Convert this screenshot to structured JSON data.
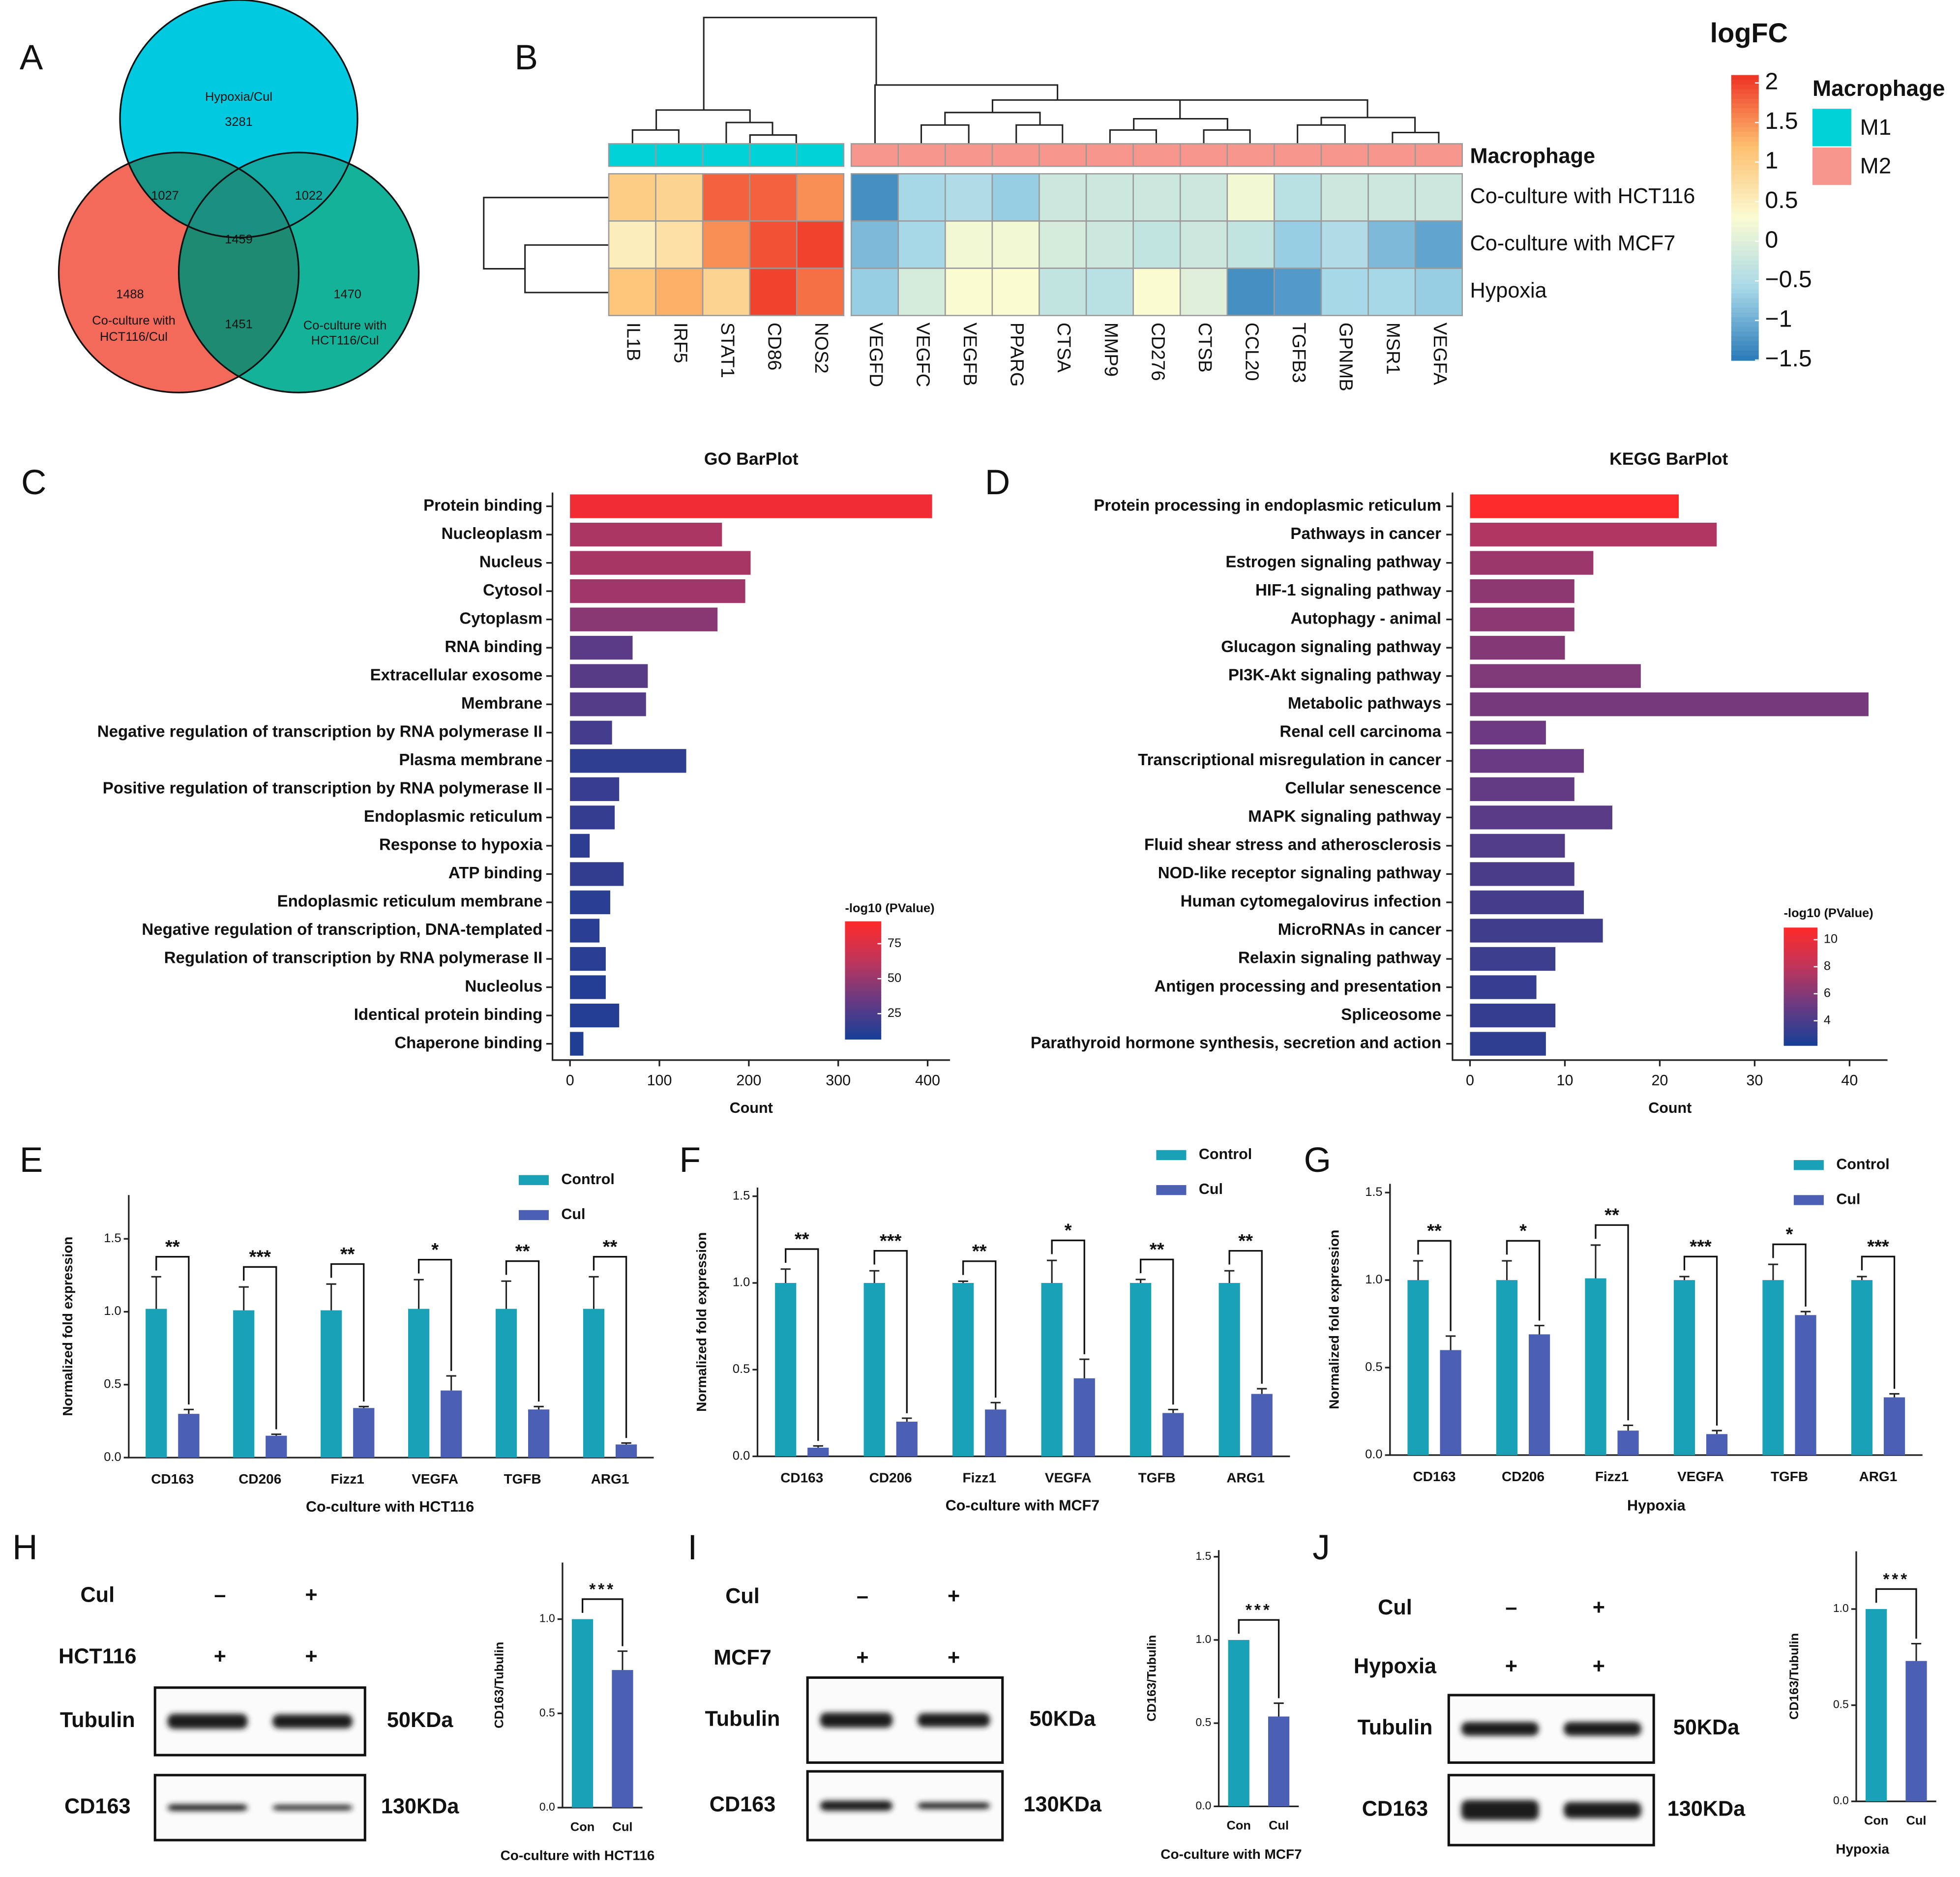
{
  "panel_labels": [
    "A",
    "B",
    "C",
    "D",
    "E",
    "F",
    "G",
    "H",
    "I",
    "J"
  ],
  "venn": {
    "labels": [
      [
        "Hypoxia/Cul"
      ],
      [
        "Co-culture with",
        "HCT116/Cul"
      ],
      [
        "Co-culture with",
        "HCT116/Cul"
      ]
    ],
    "counts": [
      3281,
      1488,
      1470,
      1027,
      1022,
      1451,
      1459
    ],
    "colors": [
      "#00c9e0",
      "#f3695a",
      "#15b29a"
    ]
  },
  "chart_data": [
    {
      "type": "heatmap",
      "rows": [
        "Co-culture with HCT116",
        "Co-culture with MCF7",
        "Hypoxia"
      ],
      "columns": [
        "IL1B",
        "IRF5",
        "STAT1",
        "CD86",
        "NOS2",
        "VEGFD",
        "VEGFC",
        "VEGFB",
        "PPARG",
        "CTSA",
        "MMP9",
        "CD276",
        "CTSB",
        "CCL20",
        "TGFB3",
        "GPNMB",
        "MSR1",
        "VEGFA"
      ],
      "values": [
        [
          1.0,
          0.9,
          1.8,
          1.8,
          1.5,
          -1.3,
          -0.6,
          -0.5,
          -0.7,
          -0.2,
          -0.2,
          -0.2,
          -0.2,
          0.2,
          -0.4,
          -0.2,
          -0.2,
          -0.2
        ],
        [
          0.5,
          0.7,
          1.5,
          1.9,
          2.0,
          -0.9,
          -0.6,
          0.2,
          0.2,
          -0.1,
          -0.2,
          -0.3,
          -0.2,
          -0.3,
          -0.7,
          -0.5,
          -0.9,
          -1.1
        ],
        [
          1.1,
          1.3,
          0.9,
          2.0,
          1.7,
          -0.7,
          -0.1,
          0.3,
          0.3,
          -0.3,
          -0.4,
          0.3,
          0.0,
          -1.3,
          -1.2,
          -0.6,
          -0.6,
          -0.7
        ]
      ],
      "annotation_title": "Macrophage",
      "annotation": [
        "M1",
        "M1",
        "M1",
        "M1",
        "M1",
        "M2",
        "M2",
        "M2",
        "M2",
        "M2",
        "M2",
        "M2",
        "M2",
        "M2",
        "M2",
        "M2",
        "M2",
        "M2"
      ],
      "legend_title": "Macrophage",
      "groups": [
        "M1",
        "M2"
      ],
      "group_colors": [
        "#00d2d8",
        "#f7968c"
      ],
      "colorbar_title": "logFC",
      "clim": [
        -1.5,
        2.1
      ],
      "cticks": [
        2,
        1.5,
        1,
        0.5,
        0,
        {
          "value": -0.5,
          "label": "−0.5"
        },
        {
          "value": -1,
          "label": "−1"
        },
        {
          "value": -1.5,
          "label": "−1.5"
        }
      ],
      "colors": [
        "#2a7ab9",
        "#a6d8e8",
        "#fbfbd2",
        "#fdbf6f",
        "#ee3224"
      ]
    },
    {
      "type": "barh",
      "title": "GO BarPlot",
      "categories": [
        "Protein binding",
        "Nucleoplasm",
        "Nucleus",
        "Cytosol",
        "Cytoplasm",
        "RNA binding",
        "Extracellular exosome",
        "Membrane",
        "Negative regulation of transcription by RNA polymerase II",
        "Plasma membrane",
        "Positive regulation of transcription by RNA polymerase II",
        "Endoplasmic reticulum",
        "Response to hypoxia",
        "ATP binding",
        "Endoplasmic reticulum membrane",
        "Negative regulation of transcription, DNA-templated",
        "Regulation of transcription by RNA polymerase II",
        "Nucleolus",
        "Identical protein binding",
        "Chaperone binding"
      ],
      "values": [
        405,
        170,
        202,
        196,
        165,
        70,
        87,
        85,
        47,
        130,
        55,
        50,
        22,
        60,
        45,
        33,
        40,
        40,
        55,
        15
      ],
      "color_values": [
        85,
        56,
        55,
        53,
        45,
        30,
        29,
        27,
        22,
        15,
        18,
        17,
        14,
        16,
        13,
        12,
        12,
        11,
        11,
        10
      ],
      "xlim": [
        0,
        425
      ],
      "xticks": [
        0,
        100,
        200,
        300,
        400
      ],
      "xlabel": "Count",
      "colorbar_title": "-log10 (PValue)",
      "clim": [
        7,
        91
      ],
      "cticks": [
        25,
        50,
        75
      ],
      "colors": [
        "#183f97",
        "#6a3a82",
        "#c0355a",
        "#ff2a2a"
      ]
    },
    {
      "type": "barh",
      "title": "KEGG BarPlot",
      "categories": [
        "Protein processing in endoplasmic reticulum",
        "Pathways in cancer",
        "Estrogen signaling pathway",
        "HIF-1 signaling pathway",
        "Autophagy - animal",
        "Glucagon signaling pathway",
        "PI3K-Akt signaling pathway",
        "Metabolic pathways",
        "Renal cell carcinoma",
        "Transcriptional misregulation in cancer",
        "Cellular senescence",
        "MAPK signaling pathway",
        "Fluid shear stress and atherosclerosis",
        "NOD-like receptor signaling pathway",
        "Human cytomegalovirus infection",
        "MicroRNAs in cancer",
        "Relaxin signaling pathway",
        "Antigen processing and presentation",
        "Spliceosome",
        "Parathyroid hormone synthesis, secretion and action"
      ],
      "values": [
        22,
        26,
        13,
        11,
        11,
        10,
        18,
        42,
        8,
        12,
        11,
        15,
        10,
        11,
        12,
        14,
        9,
        7,
        9,
        8
      ],
      "color_values": [
        10.8,
        7.5,
        6.8,
        6.3,
        6.2,
        6.0,
        5.8,
        5.5,
        5.2,
        5.0,
        4.8,
        4.5,
        4.2,
        4.0,
        3.8,
        3.6,
        3.5,
        3.3,
        3.2,
        3.0
      ],
      "xlim": [
        0,
        44
      ],
      "xticks": [
        0,
        10,
        20,
        30,
        40
      ],
      "xlabel": "Count",
      "colorbar_title": "-log10 (PValue)",
      "clim": [
        2.2,
        10.9
      ],
      "cticks": [
        4,
        6,
        8,
        10
      ],
      "colors": [
        "#183f97",
        "#6a3a82",
        "#c0355a",
        "#ff2a2a"
      ]
    },
    {
      "type": "bar",
      "categories": [
        "CD163",
        "CD206",
        "Fizz1",
        "VEGFA",
        "TGFB",
        "ARG1"
      ],
      "series": [
        {
          "name": "Control",
          "color": "#19a2b7",
          "values": [
            1.02,
            1.01,
            1.01,
            1.02,
            1.02,
            1.02
          ],
          "errors": [
            0.22,
            0.16,
            0.18,
            0.2,
            0.19,
            0.22
          ]
        },
        {
          "name": "Cul",
          "color": "#4b5fb5",
          "values": [
            0.3,
            0.15,
            0.34,
            0.46,
            0.33,
            0.09
          ],
          "errors": [
            0.03,
            0.01,
            0.01,
            0.1,
            0.02,
            0.01
          ]
        }
      ],
      "significance": [
        "**",
        "***",
        "**",
        "*",
        "**",
        "**"
      ],
      "ylim": [
        0,
        1.8
      ],
      "yticks": [
        {
          "value": 0,
          "label": "0.0"
        },
        0.5,
        {
          "value": 1,
          "label": "1.0"
        },
        1.5
      ],
      "ylabel": "Normalized fold expression",
      "xlabel": "Co-culture with HCT116"
    },
    {
      "type": "bar",
      "categories": [
        "CD163",
        "CD206",
        "Fizz1",
        "VEGFA",
        "TGFB",
        "ARG1"
      ],
      "series": [
        {
          "name": "Control",
          "color": "#19a2b7",
          "values": [
            1.0,
            1.0,
            1.0,
            1.0,
            1.0,
            1.0
          ],
          "errors": [
            0.08,
            0.07,
            0.01,
            0.13,
            0.02,
            0.07
          ]
        },
        {
          "name": "Cul",
          "color": "#4b5fb5",
          "values": [
            0.05,
            0.2,
            0.27,
            0.45,
            0.25,
            0.36
          ],
          "errors": [
            0.01,
            0.02,
            0.04,
            0.11,
            0.02,
            0.03
          ]
        }
      ],
      "significance": [
        "**",
        "***",
        "**",
        "*",
        "**",
        "**"
      ],
      "ylim": [
        0,
        1.55
      ],
      "yticks": [
        {
          "value": 0,
          "label": "0.0"
        },
        0.5,
        {
          "value": 1,
          "label": "1.0"
        },
        1.5
      ],
      "ylabel": "Normalized fold expression",
      "xlabel": "Co-culture with MCF7"
    },
    {
      "type": "bar",
      "categories": [
        "CD163",
        "CD206",
        "Fizz1",
        "VEGFA",
        "TGFB",
        "ARG1"
      ],
      "series": [
        {
          "name": "Control",
          "color": "#19a2b7",
          "values": [
            1.0,
            1.0,
            1.01,
            1.0,
            1.0,
            1.0
          ],
          "errors": [
            0.11,
            0.11,
            0.19,
            0.02,
            0.09,
            0.02
          ]
        },
        {
          "name": "Cul",
          "color": "#4b5fb5",
          "values": [
            0.6,
            0.69,
            0.14,
            0.12,
            0.8,
            0.33
          ],
          "errors": [
            0.08,
            0.05,
            0.03,
            0.02,
            0.02,
            0.02
          ]
        }
      ],
      "significance": [
        "**",
        "*",
        "**",
        "***",
        "*",
        "***"
      ],
      "ylim": [
        0,
        1.55
      ],
      "yticks": [
        {
          "value": 0,
          "label": "0.0"
        },
        0.5,
        {
          "value": 1,
          "label": "1.0"
        },
        1.5
      ],
      "ylabel": "Normalized fold expression",
      "xlabel": "Hypoxia"
    },
    {
      "type": "bar",
      "categories": [
        "Con",
        "Cul"
      ],
      "values": [
        1.0,
        0.73
      ],
      "errors": [
        null,
        0.1
      ],
      "colors": [
        "#19a2b7",
        "#4b5fb5"
      ],
      "significance": "***",
      "ylim": [
        0,
        1.3
      ],
      "yticks": [
        {
          "value": 0,
          "label": "0.0"
        },
        0.5,
        {
          "value": 1,
          "label": "1.0"
        }
      ],
      "ylabel": "CD163/Tubulin",
      "xlabel": "Co-culture with HCT116"
    },
    {
      "type": "bar",
      "categories": [
        "Con",
        "Cul"
      ],
      "values": [
        1.0,
        0.54
      ],
      "errors": [
        null,
        0.08
      ],
      "colors": [
        "#19a2b7",
        "#4b5fb5"
      ],
      "significance": "***",
      "ylim": [
        0,
        1.54
      ],
      "yticks": [
        {
          "value": 0,
          "label": "0.0"
        },
        0.5,
        {
          "value": 1,
          "label": "1.0"
        },
        1.5
      ],
      "ylabel": "CD163/Tubulin",
      "xlabel": "Co-culture with MCF7"
    },
    {
      "type": "bar",
      "categories": [
        "Con",
        "Cul"
      ],
      "values": [
        1.0,
        0.73
      ],
      "errors": [
        null,
        0.09
      ],
      "colors": [
        "#19a2b7",
        "#4b5fb5"
      ],
      "significance": "***",
      "ylim": [
        0,
        1.3
      ],
      "yticks": [
        {
          "value": 0,
          "label": "0.0"
        },
        0.5,
        {
          "value": 1,
          "label": "1.0"
        }
      ],
      "ylabel": "CD163/Tubulin",
      "xlabel": "Hypoxia"
    }
  ],
  "blots": [
    {
      "rows": [
        {
          "label": "Cul",
          "signs": [
            "–",
            "+"
          ]
        },
        {
          "label": "HCT116",
          "signs": [
            "+",
            "+"
          ]
        }
      ],
      "bands": [
        {
          "label": "Tubulin",
          "size": "50KDa"
        },
        {
          "label": "CD163",
          "size": "130KDa"
        }
      ]
    },
    {
      "rows": [
        {
          "label": "Cul",
          "signs": [
            "–",
            "+"
          ]
        },
        {
          "label": "MCF7",
          "signs": [
            "+",
            "+"
          ]
        }
      ],
      "bands": [
        {
          "label": "Tubulin",
          "size": "50KDa"
        },
        {
          "label": "CD163",
          "size": "130KDa"
        }
      ]
    },
    {
      "rows": [
        {
          "label": "Cul",
          "signs": [
            "–",
            "+"
          ]
        },
        {
          "label": "Hypoxia",
          "signs": [
            "+",
            "+"
          ]
        }
      ],
      "bands": [
        {
          "label": "Tubulin",
          "size": "50KDa"
        },
        {
          "label": "CD163",
          "size": "130KDa"
        }
      ]
    }
  ]
}
